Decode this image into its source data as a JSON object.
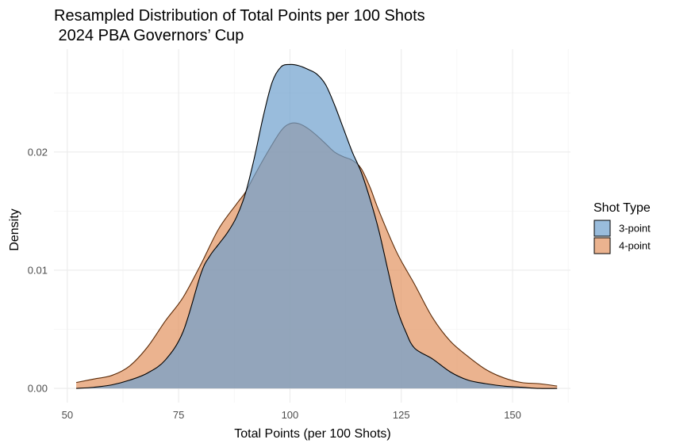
{
  "chart_data": {
    "type": "area",
    "title_line1": "Resampled Distribution of Total Points per 100 Shots",
    "title_line2": " 2024 PBA Governors’ Cup",
    "xlabel": "Total Points (per 100 Shots)",
    "ylabel": "Density",
    "xlim": [
      47,
      163
    ],
    "ylim": [
      -0.0012,
      0.0287
    ],
    "x_ticks": [
      50,
      75,
      100,
      125,
      150
    ],
    "y_ticks": [
      0.0,
      0.01,
      0.02
    ],
    "y_tick_labels": [
      "0.00",
      "0.01",
      "0.02"
    ],
    "grid": true,
    "legend": {
      "title": "Shot Type",
      "position": "right"
    },
    "series": [
      {
        "name": "4-point",
        "fill": "#e3935f",
        "stroke": "#5b2a07",
        "x": [
          52,
          56,
          60,
          64,
          68,
          72,
          76,
          80,
          84,
          88,
          90,
          92,
          95,
          98,
          100,
          102,
          104,
          106,
          108,
          110,
          112,
          114,
          116,
          118,
          120,
          124,
          128,
          132,
          136,
          140,
          144,
          148,
          152,
          156,
          160
        ],
        "y": [
          0.0005,
          0.0008,
          0.0011,
          0.0019,
          0.0035,
          0.0057,
          0.0077,
          0.0105,
          0.0135,
          0.0156,
          0.0166,
          0.018,
          0.02,
          0.0218,
          0.0224,
          0.0224,
          0.022,
          0.0214,
          0.0207,
          0.02,
          0.0196,
          0.0193,
          0.0186,
          0.017,
          0.015,
          0.0115,
          0.0088,
          0.006,
          0.004,
          0.0027,
          0.0016,
          0.0009,
          0.0005,
          0.0004,
          0.0002
        ]
      },
      {
        "name": "3-point",
        "fill": "#6e9fcd",
        "stroke": "#000000",
        "x": [
          52,
          56,
          60,
          64,
          68,
          72,
          76,
          80,
          82,
          84,
          86,
          88,
          90,
          92,
          94,
          96,
          98,
          100,
          102,
          104,
          106,
          108,
          110,
          112,
          114,
          116,
          118,
          120,
          122,
          124,
          126,
          128,
          132,
          136,
          140,
          144,
          148,
          152,
          156,
          160
        ],
        "y": [
          0.0,
          0.0001,
          0.0003,
          0.0007,
          0.0013,
          0.0024,
          0.0048,
          0.0097,
          0.0112,
          0.0122,
          0.0132,
          0.0145,
          0.0165,
          0.0195,
          0.023,
          0.0259,
          0.0272,
          0.0274,
          0.0273,
          0.027,
          0.0266,
          0.0257,
          0.024,
          0.022,
          0.02,
          0.0183,
          0.016,
          0.0133,
          0.01,
          0.0068,
          0.0048,
          0.0034,
          0.0025,
          0.0014,
          0.0007,
          0.0004,
          0.0002,
          0.0001,
          0.0,
          0.0
        ]
      }
    ]
  }
}
